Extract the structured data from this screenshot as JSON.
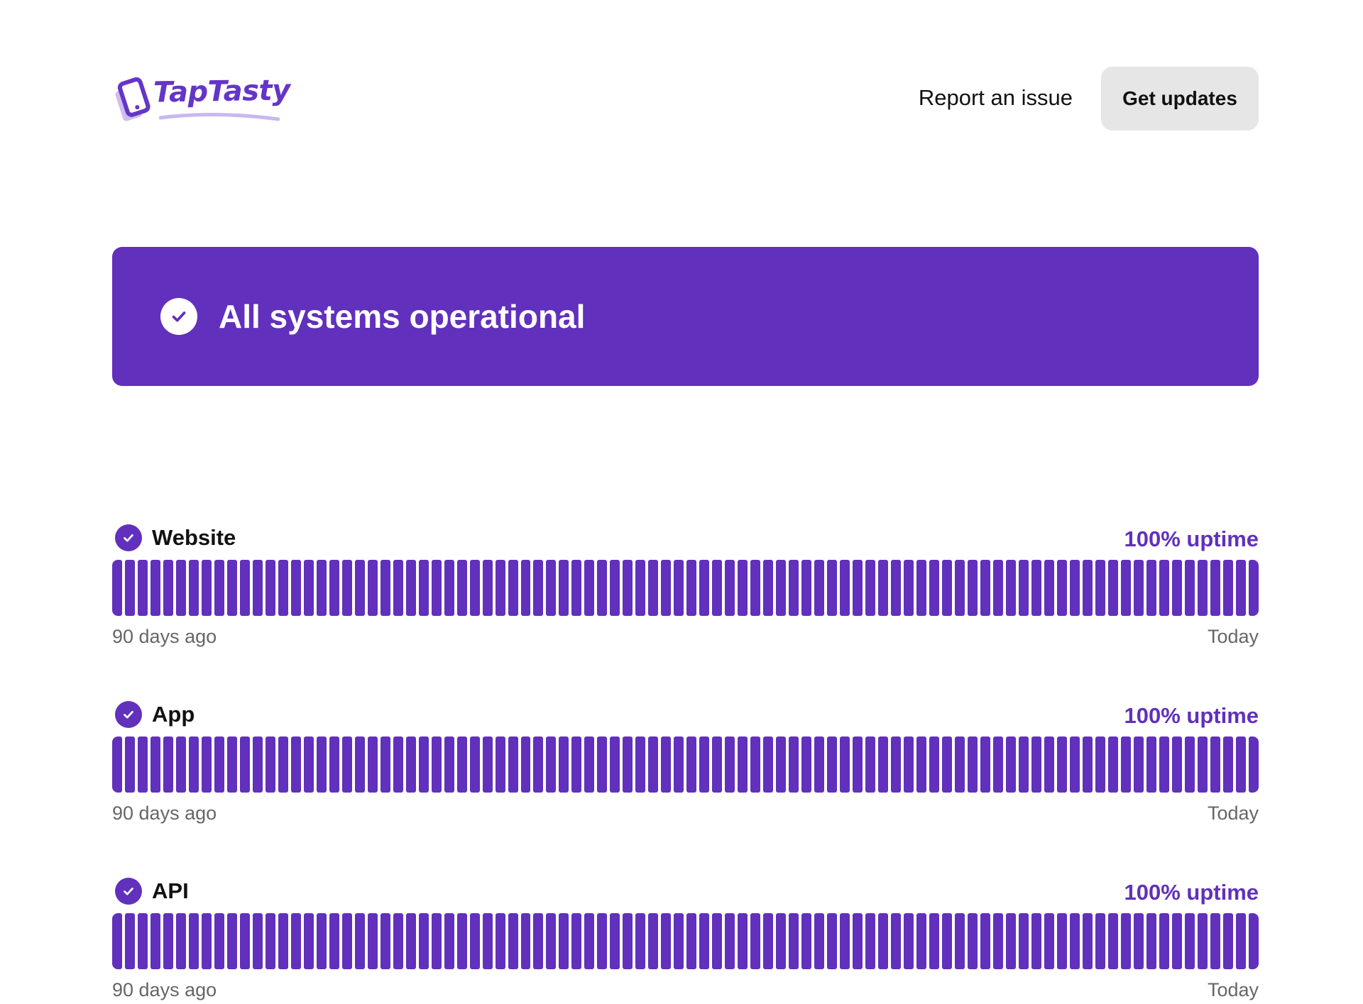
{
  "header": {
    "logo_text": "TapTasty",
    "report_label": "Report an issue",
    "updates_label": "Get updates"
  },
  "banner": {
    "title": "All systems operational",
    "icon": "check-circle-icon"
  },
  "colors": {
    "accent": "#6130bc",
    "button_bg": "#e6e6e6",
    "muted_text": "#666666"
  },
  "components": [
    {
      "name": "Website",
      "uptime": "100% uptime",
      "start_label": "90 days ago",
      "end_label": "Today",
      "bar_status": "operational"
    },
    {
      "name": "App",
      "uptime": "100% uptime",
      "start_label": "90 days ago",
      "end_label": "Today",
      "bar_status": "operational"
    },
    {
      "name": "API",
      "uptime": "100% uptime",
      "start_label": "90 days ago",
      "end_label": "Today",
      "bar_status": "operational"
    }
  ]
}
